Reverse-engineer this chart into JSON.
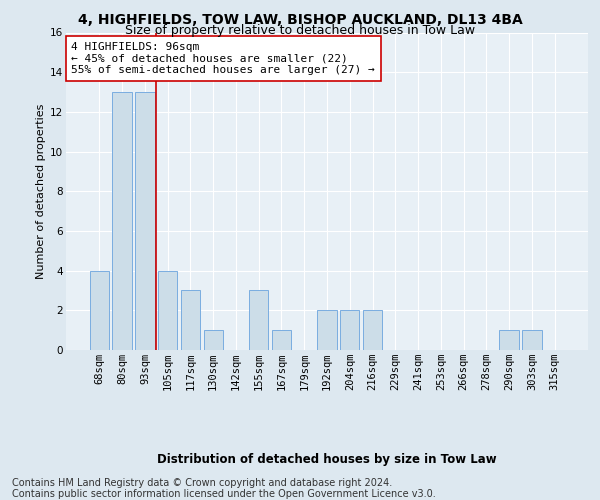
{
  "title1": "4, HIGHFIELDS, TOW LAW, BISHOP AUCKLAND, DL13 4BA",
  "title2": "Size of property relative to detached houses in Tow Law",
  "xlabel": "Distribution of detached houses by size in Tow Law",
  "ylabel": "Number of detached properties",
  "categories": [
    "68sqm",
    "80sqm",
    "93sqm",
    "105sqm",
    "117sqm",
    "130sqm",
    "142sqm",
    "155sqm",
    "167sqm",
    "179sqm",
    "192sqm",
    "204sqm",
    "216sqm",
    "229sqm",
    "241sqm",
    "253sqm",
    "266sqm",
    "278sqm",
    "290sqm",
    "303sqm",
    "315sqm"
  ],
  "values": [
    4,
    13,
    13,
    4,
    3,
    1,
    0,
    3,
    1,
    0,
    2,
    2,
    2,
    0,
    0,
    0,
    0,
    0,
    1,
    1,
    0
  ],
  "bar_color": "#ccdde8",
  "bar_edge_color": "#7aade0",
  "vline_x": 2.5,
  "vline_color": "#cc0000",
  "annotation_text": "4 HIGHFIELDS: 96sqm\n← 45% of detached houses are smaller (22)\n55% of semi-detached houses are larger (27) →",
  "annotation_box_color": "#ffffff",
  "annotation_box_edge": "#cc0000",
  "ylim": [
    0,
    16
  ],
  "yticks": [
    0,
    2,
    4,
    6,
    8,
    10,
    12,
    14,
    16
  ],
  "footer1": "Contains HM Land Registry data © Crown copyright and database right 2024.",
  "footer2": "Contains public sector information licensed under the Open Government Licence v3.0.",
  "bg_color": "#dde8f0",
  "plot_bg_color": "#e8f0f6",
  "grid_color": "#ffffff",
  "title1_fontsize": 10,
  "title2_fontsize": 9,
  "xlabel_fontsize": 8.5,
  "ylabel_fontsize": 8,
  "tick_fontsize": 7.5,
  "annotation_fontsize": 8,
  "footer_fontsize": 7
}
